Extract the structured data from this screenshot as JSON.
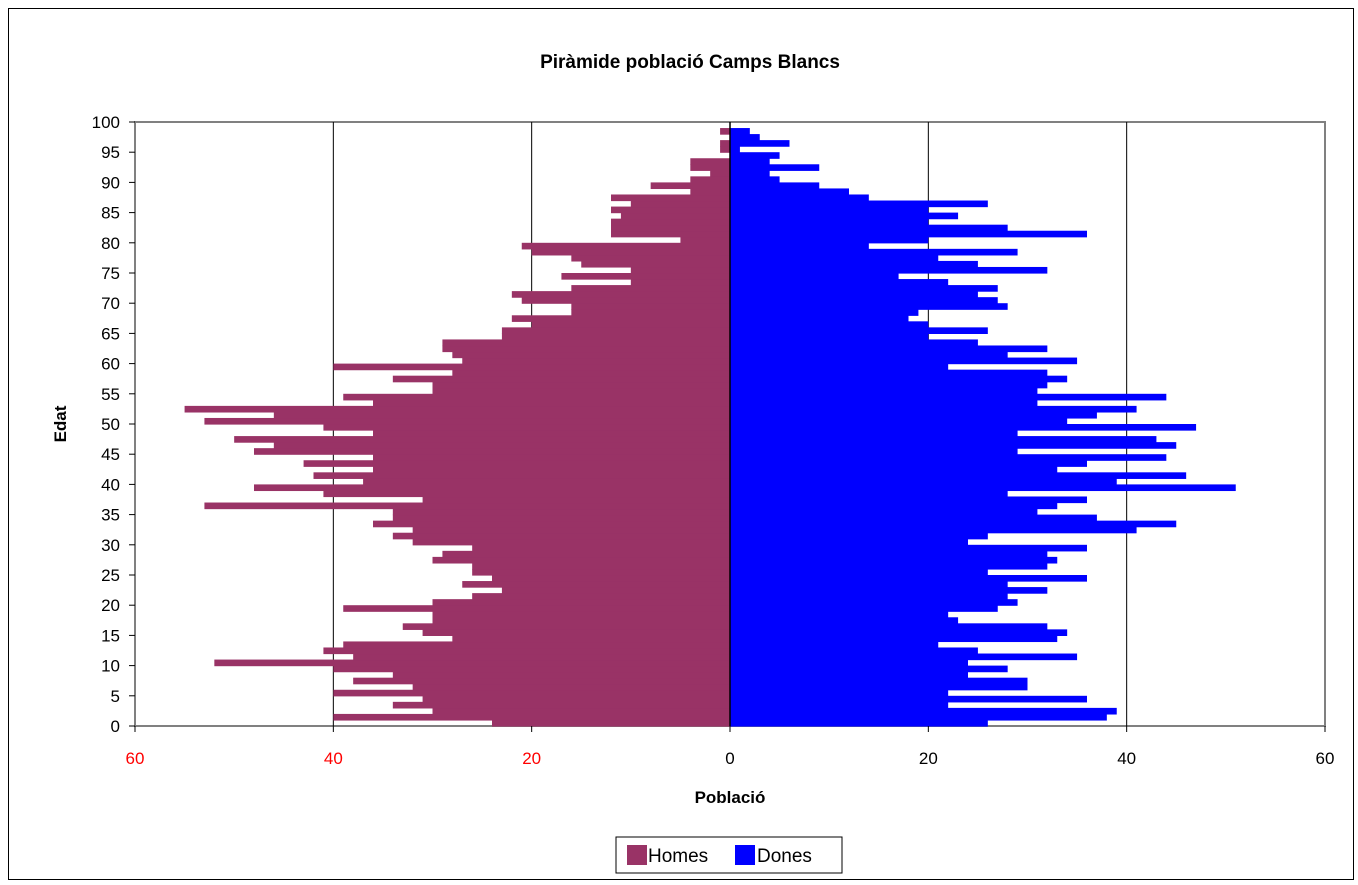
{
  "chart_data": {
    "type": "bar",
    "orientation": "horizontal",
    "subtype": "population-pyramid",
    "title": "Piràmide població Camps Blancs",
    "xlabel": "Població",
    "ylabel": "Edat",
    "xlim": [
      -60,
      60
    ],
    "ylim": [
      0,
      100
    ],
    "x_ticks": [
      -60,
      -40,
      -20,
      0,
      20,
      40,
      60
    ],
    "x_tick_labels": [
      "60",
      "40",
      "20",
      "0",
      "20",
      "40",
      "60"
    ],
    "y_ticks": [
      0,
      5,
      10,
      15,
      20,
      25,
      30,
      35,
      40,
      45,
      50,
      55,
      60,
      65,
      70,
      75,
      80,
      85,
      90,
      95,
      100
    ],
    "y_tick_labels": [
      "0",
      "5",
      "10",
      "15",
      "20",
      "25",
      "30",
      "35",
      "40",
      "45",
      "50",
      "55",
      "60",
      "65",
      "70",
      "75",
      "80",
      "85",
      "90",
      "95",
      "100"
    ],
    "negative_tick_color": "#ff0000",
    "grid": "vertical",
    "legend_position": "bottom",
    "categories": [
      0,
      1,
      2,
      3,
      4,
      5,
      6,
      7,
      8,
      9,
      10,
      11,
      12,
      13,
      14,
      15,
      16,
      17,
      18,
      19,
      20,
      21,
      22,
      23,
      24,
      25,
      26,
      27,
      28,
      29,
      30,
      31,
      32,
      33,
      34,
      35,
      36,
      37,
      38,
      39,
      40,
      41,
      42,
      43,
      44,
      45,
      46,
      47,
      48,
      49,
      50,
      51,
      52,
      53,
      54,
      55,
      56,
      57,
      58,
      59,
      60,
      61,
      62,
      63,
      64,
      65,
      66,
      67,
      68,
      69,
      70,
      71,
      72,
      73,
      74,
      75,
      76,
      77,
      78,
      79,
      80,
      81,
      82,
      83,
      84,
      85,
      86,
      87,
      88,
      89,
      90,
      91,
      92,
      93,
      94,
      95,
      96,
      97,
      98,
      99
    ],
    "series": [
      {
        "name": "Homes",
        "color": "#993366",
        "values": [
          24,
          40,
          30,
          34,
          31,
          40,
          32,
          38,
          34,
          40,
          52,
          38,
          41,
          39,
          28,
          31,
          33,
          30,
          30,
          39,
          30,
          26,
          23,
          27,
          24,
          26,
          26,
          30,
          29,
          26,
          32,
          34,
          32,
          36,
          34,
          34,
          53,
          31,
          41,
          48,
          37,
          42,
          36,
          43,
          36,
          48,
          46,
          50,
          36,
          41,
          53,
          46,
          55,
          36,
          39,
          30,
          30,
          34,
          28,
          40,
          27,
          28,
          29,
          29,
          23,
          23,
          20,
          22,
          16,
          16,
          21,
          22,
          16,
          10,
          17,
          10,
          15,
          16,
          20,
          21,
          5,
          12,
          12,
          12,
          11,
          12,
          10,
          12,
          4,
          8,
          4,
          2,
          4,
          4,
          0,
          1,
          1,
          0,
          1,
          0
        ]
      },
      {
        "name": "Dones",
        "color": "#0000ff",
        "values": [
          26,
          38,
          39,
          22,
          36,
          22,
          30,
          30,
          24,
          28,
          24,
          35,
          25,
          21,
          33,
          34,
          32,
          23,
          22,
          27,
          29,
          28,
          32,
          28,
          36,
          26,
          32,
          33,
          32,
          36,
          24,
          26,
          41,
          45,
          37,
          31,
          33,
          36,
          28,
          51,
          39,
          46,
          33,
          36,
          44,
          29,
          45,
          43,
          29,
          47,
          34,
          37,
          41,
          31,
          44,
          31,
          32,
          34,
          32,
          22,
          35,
          28,
          32,
          25,
          20,
          26,
          20,
          18,
          19,
          28,
          27,
          25,
          27,
          22,
          17,
          32,
          25,
          21,
          29,
          14,
          20,
          36,
          28,
          20,
          23,
          20,
          26,
          14,
          12,
          9,
          5,
          4,
          9,
          4,
          5,
          1,
          6,
          3,
          2,
          0
        ]
      }
    ]
  }
}
